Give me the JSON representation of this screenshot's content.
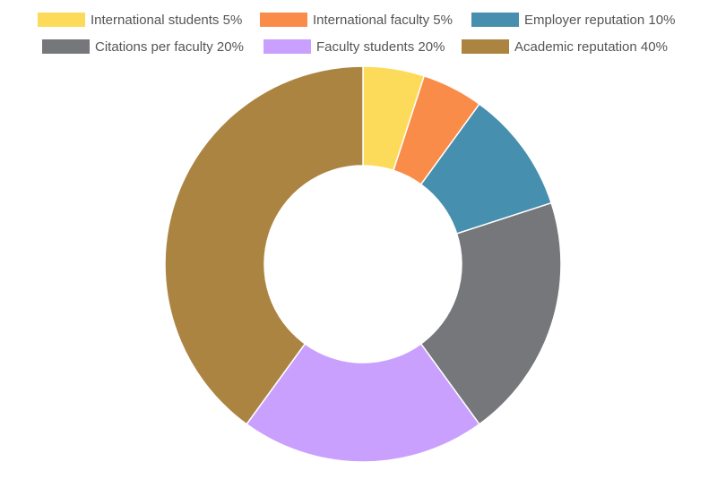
{
  "chart_data": {
    "type": "donut",
    "categories": [
      "International students 5%",
      "International faculty 5%",
      "Employer reputation 10%",
      "Citations per faculty 20%",
      "Faculty students 20%",
      "Academic reputation 40%"
    ],
    "values": [
      5,
      5,
      10,
      20,
      20,
      40
    ],
    "colors": [
      "#fddb5a",
      "#fa8c4a",
      "#478fae",
      "#75777a",
      "#c9a0fe",
      "#ac8442"
    ],
    "legend": "top"
  }
}
